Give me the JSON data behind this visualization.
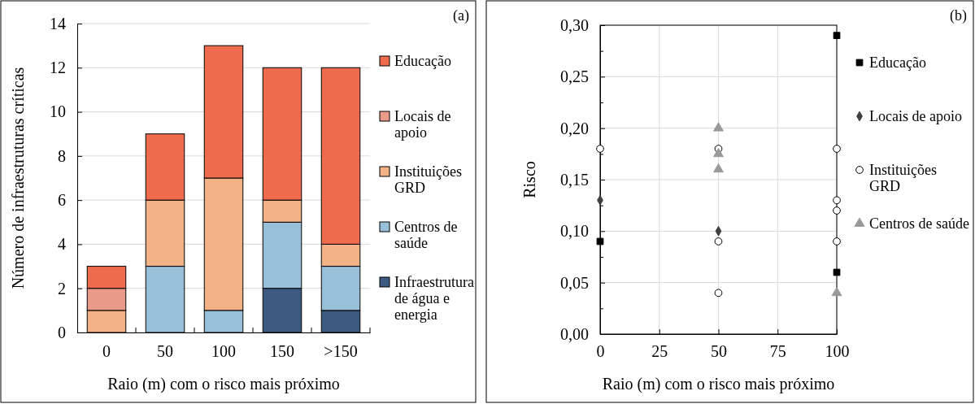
{
  "chart_data": [
    {
      "type": "bar",
      "stacked": true,
      "categories": [
        "0",
        "50",
        "100",
        "150",
        ">150"
      ],
      "xlabel": "Raio (m) com o risco mais próximo",
      "ylabel": "Número de infraestruturas críticas",
      "ylim": [
        0,
        14
      ],
      "yticks": [
        0,
        2,
        4,
        6,
        8,
        10,
        12,
        14
      ],
      "grid": "y",
      "legend": "right",
      "annotations": [
        "(a)"
      ],
      "series": [
        {
          "name": "Infraestrutura de água e energia",
          "color": "#3d5a80",
          "values": [
            0,
            0,
            0,
            2,
            1
          ]
        },
        {
          "name": "Centros de saúde",
          "color": "#98c1d9",
          "values": [
            0,
            3,
            1,
            3,
            2
          ]
        },
        {
          "name": "Instituições GRD",
          "color": "#f3b285",
          "values": [
            1,
            3,
            6,
            1,
            1
          ]
        },
        {
          "name": "Locais de apoio",
          "color": "#ea9a88",
          "values": [
            1,
            0,
            0,
            0,
            0
          ]
        },
        {
          "name": "Educação",
          "color": "#ee6c4d",
          "values": [
            1,
            3,
            6,
            6,
            8
          ]
        }
      ]
    },
    {
      "type": "scatter",
      "xlabel": "Raio (m) com o risco mais próximo",
      "ylabel": "Risco",
      "xlim": [
        0,
        100
      ],
      "xticks": [
        0,
        25,
        50,
        75,
        100
      ],
      "ylim": [
        0,
        0.3
      ],
      "yticks": [
        {
          "value": 0,
          "label": "0,00"
        },
        {
          "value": 0.025,
          "label": null
        },
        {
          "value": 0.05,
          "label": "0,05"
        },
        {
          "value": 0.075,
          "label": null
        },
        {
          "value": 0.1,
          "label": "0,10"
        },
        {
          "value": 0.125,
          "label": null
        },
        {
          "value": 0.15,
          "label": "0,15"
        },
        {
          "value": 0.175,
          "label": null
        },
        {
          "value": 0.2,
          "label": "0,20"
        },
        {
          "value": 0.225,
          "label": null
        },
        {
          "value": 0.25,
          "label": "0,25"
        },
        {
          "value": 0.275,
          "label": null
        },
        {
          "value": 0.3,
          "label": "0,30"
        }
      ],
      "grid": true,
      "legend": "right",
      "annotations": [
        "(b)"
      ],
      "series": [
        {
          "name": "Educação",
          "color": "#000000",
          "marker": "square",
          "x": [
            0,
            100,
            100
          ],
          "values": [
            0.09,
            0.29,
            0.06
          ]
        },
        {
          "name": "Locais de apoio",
          "color": "#404040",
          "marker": "diamond",
          "x": [
            0,
            50
          ],
          "values": [
            0.13,
            0.1
          ]
        },
        {
          "name": "Instituições GRD",
          "color": "#ffffff",
          "marker": "circle",
          "x": [
            0,
            50,
            50,
            50,
            100,
            100,
            100,
            100
          ],
          "values": [
            0.18,
            0.18,
            0.09,
            0.04,
            0.18,
            0.13,
            0.12,
            0.09
          ]
        },
        {
          "name": "Centros de saúde",
          "color": "#999999",
          "marker": "triangle",
          "x": [
            50,
            50,
            50,
            100
          ],
          "values": [
            0.2,
            0.175,
            0.16,
            0.04
          ]
        }
      ]
    }
  ]
}
